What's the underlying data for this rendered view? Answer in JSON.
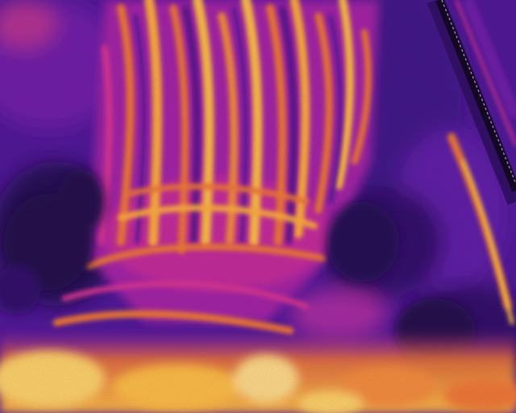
{
  "image": {
    "kind": "thermal-aerial-photograph",
    "palette": {
      "cold_deep": "#1a0840",
      "cold": "#3a0f7a",
      "cool": "#5c1a9c",
      "mid_magenta": "#9c1fa8",
      "warm_pink": "#d9348a",
      "warm_orange": "#f07a2a",
      "hot_yellow": "#ffc23a",
      "hottest": "#fff2a8"
    }
  }
}
